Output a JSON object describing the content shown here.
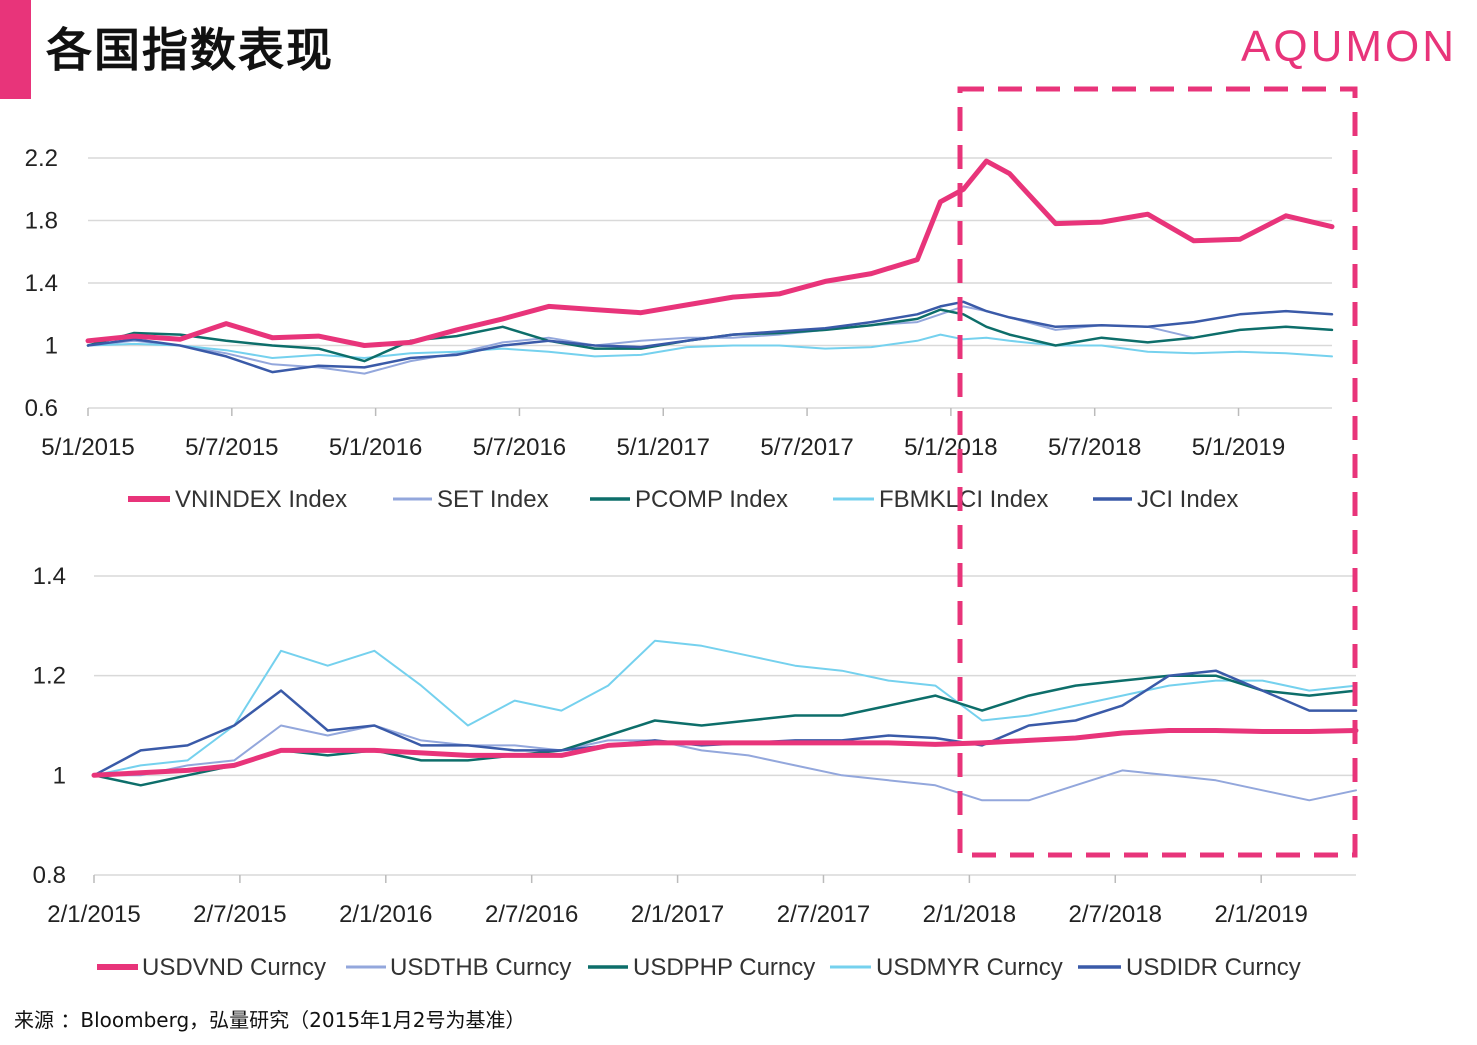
{
  "header": {
    "title": "各国指数表现",
    "brand": "AQUMON"
  },
  "source": "来源 ：Bloomberg，弘量研究（2015年1月2号为基准）",
  "colors": {
    "accent": "#e8347a",
    "pink": "#e8347a",
    "lavender": "#93a7dc",
    "teal": "#0d6e6a",
    "cyan": "#75d1ee",
    "blue": "#3a5aa8",
    "grid": "#d9d9d9",
    "highlight_box": "#e8347a"
  },
  "chart_data": [
    {
      "type": "line",
      "title": "",
      "xlabel": "",
      "ylabel": "",
      "ylim": [
        0.6,
        2.2
      ],
      "yticks": [
        "2.2",
        "1.8",
        "1.4",
        "1",
        "0.6"
      ],
      "ytick_values": [
        2.2,
        1.8,
        1.4,
        1.0,
        0.6
      ],
      "xticks": [
        "5/1/2015",
        "5/7/2015",
        "5/1/2016",
        "5/7/2016",
        "5/1/2017",
        "5/7/2017",
        "5/1/2018",
        "5/7/2018",
        "5/1/2019"
      ],
      "grid": true,
      "legend": "bottom",
      "x": [
        "2015-01",
        "2015-03",
        "2015-05",
        "2015-07",
        "2015-09",
        "2015-11",
        "2016-01",
        "2016-03",
        "2016-05",
        "2016-07",
        "2016-09",
        "2016-11",
        "2017-01",
        "2017-03",
        "2017-05",
        "2017-07",
        "2017-09",
        "2017-11",
        "2018-01",
        "2018-02",
        "2018-03",
        "2018-04",
        "2018-05",
        "2018-07",
        "2018-09",
        "2018-11",
        "2019-01",
        "2019-03",
        "2019-05",
        "2019-07"
      ],
      "series": [
        {
          "name": "VNINDEX Index",
          "color_key": "pink",
          "width": 5,
          "values": [
            1.03,
            1.06,
            1.04,
            1.14,
            1.05,
            1.06,
            1.0,
            1.02,
            1.1,
            1.17,
            1.25,
            1.23,
            1.21,
            1.26,
            1.31,
            1.33,
            1.41,
            1.46,
            1.55,
            1.92,
            2.0,
            2.18,
            2.1,
            1.78,
            1.79,
            1.84,
            1.67,
            1.68,
            1.83,
            1.76
          ]
        },
        {
          "name": "SET Index",
          "color_key": "lavender",
          "width": 2,
          "values": [
            1.0,
            1.03,
            1.0,
            0.95,
            0.88,
            0.86,
            0.82,
            0.9,
            0.95,
            1.02,
            1.05,
            1.0,
            1.03,
            1.05,
            1.05,
            1.07,
            1.1,
            1.13,
            1.15,
            1.2,
            1.25,
            1.22,
            1.18,
            1.1,
            1.13,
            1.12,
            1.05,
            1.1,
            1.12,
            1.1
          ]
        },
        {
          "name": "PCOMP Index",
          "color_key": "teal",
          "width": 2.5,
          "values": [
            1.0,
            1.08,
            1.07,
            1.03,
            1.0,
            0.98,
            0.9,
            1.03,
            1.06,
            1.12,
            1.03,
            0.98,
            0.98,
            1.03,
            1.07,
            1.08,
            1.1,
            1.13,
            1.17,
            1.23,
            1.2,
            1.12,
            1.07,
            1.0,
            1.05,
            1.02,
            1.05,
            1.1,
            1.12,
            1.1
          ]
        },
        {
          "name": "FBMKLCI Index",
          "color_key": "cyan",
          "width": 2,
          "values": [
            1.0,
            1.01,
            1.0,
            0.97,
            0.92,
            0.94,
            0.92,
            0.95,
            0.96,
            0.98,
            0.96,
            0.93,
            0.94,
            0.99,
            1.0,
            1.0,
            0.98,
            0.99,
            1.03,
            1.07,
            1.04,
            1.05,
            1.03,
            1.0,
            1.0,
            0.96,
            0.95,
            0.96,
            0.95,
            0.93
          ]
        },
        {
          "name": "JCI Index",
          "color_key": "blue",
          "width": 2.5,
          "values": [
            1.0,
            1.04,
            1.0,
            0.93,
            0.83,
            0.87,
            0.86,
            0.92,
            0.94,
            1.0,
            1.03,
            1.0,
            0.99,
            1.03,
            1.07,
            1.09,
            1.11,
            1.15,
            1.2,
            1.25,
            1.28,
            1.22,
            1.18,
            1.12,
            1.13,
            1.12,
            1.15,
            1.2,
            1.22,
            1.2
          ]
        }
      ]
    },
    {
      "type": "line",
      "title": "",
      "xlabel": "",
      "ylabel": "",
      "ylim": [
        0.8,
        1.4
      ],
      "yticks": [
        "1.4",
        "1.2",
        "1",
        "0.8"
      ],
      "ytick_values": [
        1.4,
        1.2,
        1.0,
        0.8
      ],
      "xticks": [
        "2/1/2015",
        "2/7/2015",
        "2/1/2016",
        "2/7/2016",
        "2/1/2017",
        "2/7/2017",
        "2/1/2018",
        "2/7/2018",
        "2/1/2019"
      ],
      "grid": true,
      "legend": "bottom",
      "x": [
        "2015-01",
        "2015-03",
        "2015-05",
        "2015-07",
        "2015-09",
        "2015-11",
        "2016-01",
        "2016-03",
        "2016-05",
        "2016-07",
        "2016-09",
        "2016-11",
        "2017-01",
        "2017-03",
        "2017-05",
        "2017-07",
        "2017-09",
        "2017-11",
        "2018-01",
        "2018-03",
        "2018-05",
        "2018-07",
        "2018-09",
        "2018-11",
        "2019-01",
        "2019-03",
        "2019-05",
        "2019-07"
      ],
      "series": [
        {
          "name": "USDVND Curncy",
          "color_key": "pink",
          "width": 5,
          "values": [
            1.0,
            1.005,
            1.01,
            1.02,
            1.05,
            1.05,
            1.05,
            1.045,
            1.04,
            1.04,
            1.04,
            1.06,
            1.065,
            1.065,
            1.065,
            1.065,
            1.065,
            1.065,
            1.062,
            1.065,
            1.07,
            1.075,
            1.085,
            1.09,
            1.09,
            1.088,
            1.088,
            1.09
          ]
        },
        {
          "name": "USDTHB Curncy",
          "color_key": "lavender",
          "width": 2,
          "values": [
            1.0,
            1.0,
            1.02,
            1.03,
            1.1,
            1.08,
            1.1,
            1.07,
            1.06,
            1.06,
            1.05,
            1.07,
            1.07,
            1.05,
            1.04,
            1.02,
            1.0,
            0.99,
            0.98,
            0.95,
            0.95,
            0.98,
            1.01,
            1.0,
            0.99,
            0.97,
            0.95,
            0.97
          ]
        },
        {
          "name": "USDPHP Curncy",
          "color_key": "teal",
          "width": 2.5,
          "values": [
            1.0,
            0.98,
            1.0,
            1.02,
            1.05,
            1.04,
            1.05,
            1.03,
            1.03,
            1.04,
            1.05,
            1.08,
            1.11,
            1.1,
            1.11,
            1.12,
            1.12,
            1.14,
            1.16,
            1.13,
            1.16,
            1.18,
            1.19,
            1.2,
            1.2,
            1.17,
            1.16,
            1.17
          ]
        },
        {
          "name": "USDMYR Curncy",
          "color_key": "cyan",
          "width": 2,
          "values": [
            1.0,
            1.02,
            1.03,
            1.1,
            1.25,
            1.22,
            1.25,
            1.18,
            1.1,
            1.15,
            1.13,
            1.18,
            1.27,
            1.26,
            1.24,
            1.22,
            1.21,
            1.19,
            1.18,
            1.11,
            1.12,
            1.14,
            1.16,
            1.18,
            1.19,
            1.19,
            1.17,
            1.18
          ]
        },
        {
          "name": "USDIDR Curncy",
          "color_key": "blue",
          "width": 2.5,
          "values": [
            1.0,
            1.05,
            1.06,
            1.1,
            1.17,
            1.09,
            1.1,
            1.06,
            1.06,
            1.05,
            1.05,
            1.06,
            1.07,
            1.06,
            1.065,
            1.07,
            1.07,
            1.08,
            1.075,
            1.06,
            1.1,
            1.11,
            1.14,
            1.2,
            1.21,
            1.17,
            1.13,
            1.13
          ]
        }
      ]
    }
  ]
}
